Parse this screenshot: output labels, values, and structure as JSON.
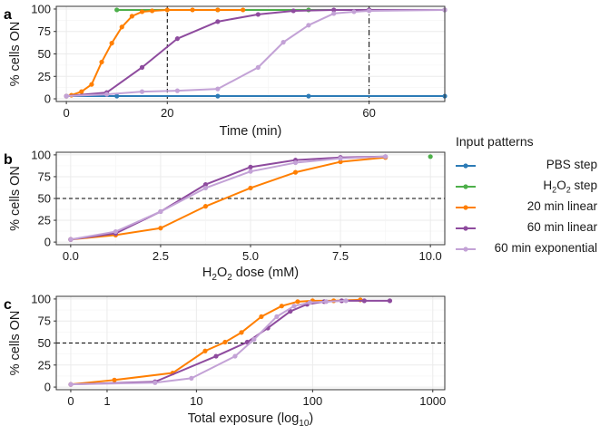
{
  "chart_data": [
    {
      "type": "line",
      "panel": "a",
      "xlabel": "Time (min)",
      "ylabel": "% cells ON",
      "xlim": [
        -2,
        75
      ],
      "ylim": [
        -3,
        103
      ],
      "xticks": [
        0,
        20,
        60
      ],
      "yticks": [
        0,
        25,
        50,
        75,
        100
      ],
      "vlines": [
        20,
        60
      ],
      "grid": true,
      "series": [
        {
          "name": "PBS step",
          "color": "#2c7bb6",
          "x": [
            0,
            10,
            30,
            48,
            75
          ],
          "y": [
            3,
            3,
            3,
            3,
            3
          ]
        },
        {
          "name": "H2O2 step",
          "color": "#4daf4a",
          "x": [
            10,
            30,
            48,
            60,
            75
          ],
          "y": [
            99,
            99,
            99,
            99,
            99
          ]
        },
        {
          "name": "20 min linear",
          "color": "#ff7f00",
          "x": [
            0,
            1,
            3,
            5,
            7,
            9,
            11,
            13,
            15,
            17,
            20,
            25,
            30,
            35
          ],
          "y": [
            3,
            4,
            8,
            16,
            41,
            62,
            80,
            92,
            97,
            98,
            99,
            99,
            99,
            99
          ]
        },
        {
          "name": "60 min linear",
          "color": "#8e4b9e",
          "x": [
            0,
            8,
            15,
            22,
            30,
            38,
            45,
            53,
            60,
            75
          ],
          "y": [
            3,
            7,
            35,
            67,
            86,
            94,
            98,
            99,
            99,
            99
          ]
        },
        {
          "name": "60 min exponential",
          "color": "#c3a2d6",
          "x": [
            0,
            8,
            15,
            22,
            30,
            38,
            43,
            48,
            53,
            57,
            60,
            75
          ],
          "y": [
            3,
            5,
            8,
            9,
            11,
            35,
            63,
            82,
            95,
            97,
            98,
            99
          ]
        }
      ]
    },
    {
      "type": "line",
      "panel": "b",
      "xlabel": "H2O2 dose (mM)",
      "ylabel": "% cells ON",
      "xlim": [
        -0.4,
        10.4
      ],
      "ylim": [
        -3,
        103
      ],
      "xticks": [
        0.0,
        2.5,
        5.0,
        7.5,
        10.0
      ],
      "xtick_labels": [
        "0.0",
        "2.5",
        "5.0",
        "7.5",
        "10.0"
      ],
      "yticks": [
        0,
        25,
        50,
        75,
        100
      ],
      "hline": 50,
      "grid": true,
      "series": [
        {
          "name": "PBS step",
          "color": "#2c7bb6",
          "x": [
            0
          ],
          "y": [
            3
          ]
        },
        {
          "name": "H2O2 step",
          "color": "#4daf4a",
          "x": [
            10
          ],
          "y": [
            98
          ]
        },
        {
          "name": "20 min linear",
          "color": "#ff7f00",
          "x": [
            0,
            1.25,
            2.5,
            3.75,
            5.0,
            6.25,
            7.5,
            8.75
          ],
          "y": [
            3,
            8,
            16,
            41,
            62,
            80,
            92,
            97
          ]
        },
        {
          "name": "60 min linear",
          "color": "#8e4b9e",
          "x": [
            0,
            1.25,
            2.5,
            3.75,
            5.0,
            6.25,
            7.5,
            8.75
          ],
          "y": [
            3,
            10,
            35,
            66,
            86,
            94,
            97,
            98
          ]
        },
        {
          "name": "60 min exponential",
          "color": "#c3a2d6",
          "x": [
            0,
            1.25,
            2.5,
            3.75,
            5.0,
            6.25,
            7.5,
            8.75
          ],
          "y": [
            3,
            12,
            35,
            62,
            81,
            91,
            96,
            98
          ]
        }
      ]
    },
    {
      "type": "line",
      "panel": "c",
      "xlabel": "Total exposure (log10)",
      "ylabel": "% cells ON",
      "xscale": "log1p",
      "xlim": [
        -0.12,
        3.1
      ],
      "ylim": [
        -3,
        103
      ],
      "xticks": [
        0,
        1,
        10,
        100,
        1000
      ],
      "yticks": [
        0,
        25,
        50,
        75,
        100
      ],
      "hline": 50,
      "grid": true,
      "series": [
        {
          "name": "20 min linear",
          "color": "#ff7f00",
          "x": [
            0,
            1.3,
            6,
            12,
            18,
            25,
            37,
            55,
            75,
            100,
            150,
            250
          ],
          "y": [
            3,
            8,
            16,
            41,
            51,
            62,
            80,
            92,
            97,
            98,
            98,
            99
          ]
        },
        {
          "name": "60 min linear",
          "color": "#8e4b9e",
          "x": [
            0,
            4,
            15,
            28,
            42,
            65,
            90,
            125,
            175,
            270,
            440
          ],
          "y": [
            3,
            6,
            35,
            51,
            67,
            86,
            94,
            97,
            98,
            98,
            98
          ]
        },
        {
          "name": "60 min exponential",
          "color": "#c3a2d6",
          "x": [
            0,
            4,
            9,
            22,
            32,
            50,
            70,
            95,
            130,
            190
          ],
          "y": [
            3,
            5,
            10,
            35,
            54,
            80,
            92,
            96,
            97,
            98
          ]
        }
      ]
    }
  ],
  "panel_tags": [
    "a",
    "b",
    "c"
  ],
  "legend": {
    "title": "Input patterns",
    "items": [
      {
        "label": "PBS step",
        "color": "#2c7bb6"
      },
      {
        "label": "H2O2 step",
        "base": "H",
        "sub": "2",
        "base2": "O",
        "sub2": "2",
        "rest": " step",
        "color": "#4daf4a"
      },
      {
        "label": "20 min linear",
        "color": "#ff7f00"
      },
      {
        "label": "60 min linear",
        "color": "#8e4b9e"
      },
      {
        "label": "60 min exponential",
        "color": "#c3a2d6"
      }
    ]
  }
}
